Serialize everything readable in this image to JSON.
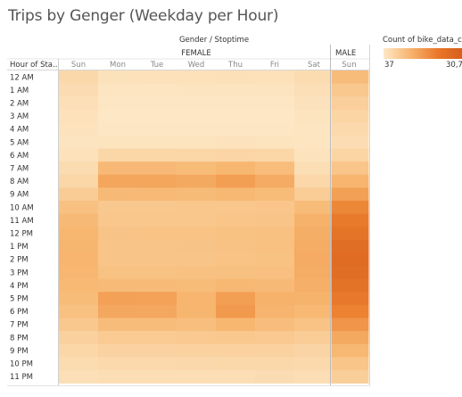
{
  "title": "Trips by Genger (Weekday per Hour)",
  "chart_data": {
    "type": "heatmap",
    "title": "Trips by Genger (Weekday per Hour)",
    "column_header": "Gender / Stoptime",
    "row_header": "Hour of Sta..",
    "groups": [
      {
        "name": "FEMALE",
        "columns": [
          "Sun",
          "Mon",
          "Tue",
          "Wed",
          "Thu",
          "Fri",
          "Sat"
        ]
      },
      {
        "name": "MALE",
        "columns": [
          "Sun"
        ]
      }
    ],
    "rows": [
      "12 AM",
      "1 AM",
      "2 AM",
      "3 AM",
      "4 AM",
      "5 AM",
      "6 AM",
      "7 AM",
      "8 AM",
      "9 AM",
      "10 AM",
      "11 AM",
      "12 PM",
      "1 PM",
      "2 PM",
      "3 PM",
      "4 PM",
      "5 PM",
      "6 PM",
      "7 PM",
      "8 PM",
      "9 PM",
      "10 PM",
      "11 PM"
    ],
    "series": [
      {
        "name": "FEMALE Sun",
        "values": [
          3200,
          2400,
          1900,
          1500,
          1100,
          900,
          1500,
          2600,
          3600,
          5400,
          7600,
          8700,
          9200,
          9500,
          9600,
          9300,
          8900,
          8400,
          7600,
          6100,
          4500,
          3400,
          2500,
          1800
        ]
      },
      {
        "name": "FEMALE Mon",
        "values": [
          1400,
          800,
          500,
          400,
          500,
          1000,
          3500,
          8800,
          12500,
          8700,
          6200,
          6400,
          7000,
          6900,
          6800,
          7300,
          8600,
          13500,
          12200,
          8300,
          5800,
          4200,
          3000,
          2000
        ]
      },
      {
        "name": "FEMALE Tue",
        "values": [
          1500,
          800,
          500,
          400,
          500,
          1000,
          3600,
          8800,
          12600,
          8800,
          6200,
          6400,
          7100,
          6900,
          6800,
          7300,
          8600,
          13400,
          12300,
          8300,
          5800,
          4200,
          3000,
          2000
        ]
      },
      {
        "name": "FEMALE Wed",
        "values": [
          1600,
          900,
          600,
          400,
          500,
          1000,
          3400,
          8400,
          12000,
          8500,
          6400,
          6500,
          7100,
          7000,
          6900,
          7400,
          8400,
          9600,
          9500,
          8000,
          5900,
          4300,
          3100,
          2100
        ]
      },
      {
        "name": "FEMALE Thu",
        "values": [
          1700,
          900,
          600,
          400,
          500,
          1100,
          3700,
          9200,
          14200,
          9000,
          6500,
          6700,
          7300,
          7200,
          7100,
          7600,
          9000,
          14000,
          15200,
          9300,
          6100,
          4400,
          3200,
          2200
        ]
      },
      {
        "name": "FEMALE Fri",
        "values": [
          1600,
          900,
          600,
          400,
          500,
          1000,
          3400,
          8200,
          11600,
          8400,
          6600,
          6800,
          7400,
          7400,
          7300,
          7700,
          8700,
          10400,
          9800,
          8100,
          5900,
          4300,
          3200,
          2400
        ]
      },
      {
        "name": "FEMALE Sat",
        "values": [
          2500,
          1800,
          1300,
          1000,
          800,
          700,
          1200,
          2100,
          3300,
          5300,
          8400,
          10300,
          11000,
          11400,
          11500,
          11200,
          10800,
          10000,
          8900,
          7100,
          5200,
          3900,
          2900,
          2200
        ]
      },
      {
        "name": "MALE Sun",
        "values": [
          8300,
          6200,
          4800,
          3800,
          2900,
          2300,
          3800,
          6600,
          9600,
          13800,
          18600,
          21600,
          23500,
          25300,
          25800,
          25200,
          23900,
          21900,
          19700,
          15800,
          11900,
          9000,
          6700,
          5000
        ]
      }
    ],
    "color_legend": {
      "title": "Count of bike_data_c...",
      "min": "37",
      "max": "30,74...",
      "colors": [
        "#fde8c6",
        "#f7b36e",
        "#e9762a",
        "#d45b17"
      ]
    }
  }
}
